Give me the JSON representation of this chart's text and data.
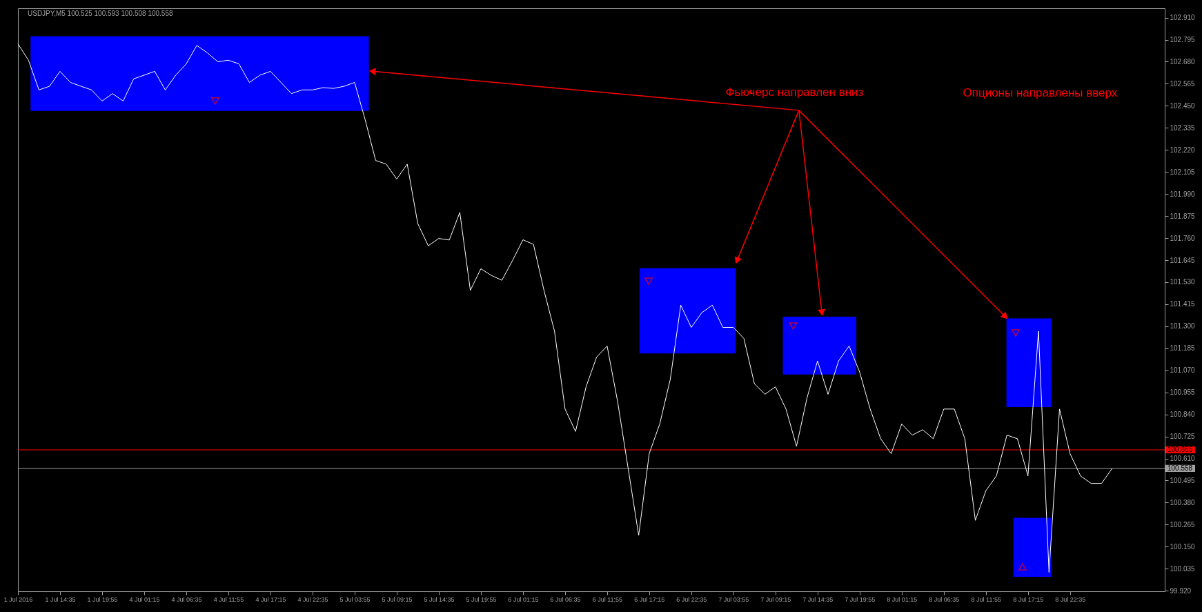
{
  "chart_data": {
    "type": "line",
    "categories": [
      "1 Jul 2016",
      null,
      null,
      null,
      "1 Jul 14:35",
      null,
      null,
      null,
      "1 Jul 19:55",
      null,
      null,
      null,
      "4 Jul 01:15",
      null,
      null,
      null,
      "4 Jul 06:35",
      null,
      null,
      null,
      "4 Jul 11:55",
      null,
      null,
      null,
      "4 Jul 17:15",
      null,
      null,
      null,
      "4 Jul 22:35",
      null,
      null,
      null,
      "5 Jul 03:55",
      null,
      null,
      null,
      "5 Jul 09:15",
      null,
      null,
      null,
      "5 Jul 14:35",
      null,
      null,
      null,
      "5 Jul 19:55",
      null,
      null,
      null,
      "6 Jul 01:15",
      null,
      null,
      null,
      "6 Jul 06:35",
      null,
      null,
      null,
      "6 Jul 11:55",
      null,
      null,
      null,
      "6 Jul 17:15",
      null,
      null,
      null,
      "6 Jul 22:35",
      null,
      null,
      null,
      "7 Jul 03:55",
      null,
      null,
      null,
      "7 Jul 09:15",
      null,
      null,
      null,
      "7 Jul 14:35",
      null,
      null,
      null,
      "7 Jul 19:55",
      null,
      null,
      null,
      "8 Jul 01:15",
      null,
      null,
      null,
      "8 Jul 06:35",
      null,
      null,
      null,
      "8 Jul 11:55",
      null,
      null,
      null,
      "8 Jul 17:15",
      null,
      null,
      null,
      "8 Jul 22:35",
      null,
      null,
      null,
      null,
      null,
      null,
      null,
      null,
      null
    ],
    "series": [
      {
        "color": "#ffffff",
        "values": [
          102.773,
          102.688,
          102.533,
          102.552,
          102.63,
          102.572,
          102.552,
          102.533,
          102.475,
          102.514,
          102.475,
          102.591,
          102.61,
          102.63,
          102.533,
          102.61,
          102.669,
          102.765,
          102.727,
          102.68,
          102.688,
          102.669,
          102.572,
          102.61,
          102.63,
          102.572,
          102.514,
          102.533,
          102.533,
          102.545,
          102.541,
          102.552,
          102.572,
          102.378,
          102.165,
          102.146,
          102.068,
          102.146,
          101.836,
          101.72,
          101.758,
          101.75,
          101.894,
          101.487,
          101.6,
          101.565,
          101.54,
          101.642,
          101.751,
          101.727,
          101.487,
          101.274,
          100.868,
          100.751,
          100.984,
          101.139,
          101.197,
          100.906,
          100.558,
          100.209,
          100.635,
          100.79,
          101.022,
          101.41,
          101.294,
          101.371,
          101.41,
          101.294,
          101.294,
          101.236,
          101.0,
          100.945,
          100.984,
          100.868,
          100.674,
          100.926,
          101.119,
          100.945,
          101.119,
          101.197,
          101.061,
          100.868,
          100.713,
          100.635,
          100.79,
          100.732,
          100.76,
          100.713,
          100.868,
          100.868,
          100.713,
          100.287,
          100.442,
          100.519,
          100.732,
          100.713,
          100.519,
          101.274,
          100.016,
          100.868,
          100.635,
          100.519,
          100.48,
          100.48,
          100.558,
          null,
          null,
          null,
          null,
          null
        ]
      }
    ],
    "ylim": [
      99.917,
      102.959
    ],
    "yticks": [
      {
        "value": 99.92,
        "label": "99.920"
      },
      {
        "value": 100.035,
        "label": "100.035"
      },
      {
        "value": 100.15,
        "label": "100.150"
      },
      {
        "value": 100.265,
        "label": "100.265"
      },
      {
        "value": 100.38,
        "label": "100.380"
      },
      {
        "value": 100.495,
        "label": "100.495"
      },
      {
        "value": 100.61,
        "label": "100.610"
      },
      {
        "value": 100.725,
        "label": "100.725"
      },
      {
        "value": 100.84,
        "label": "100.840"
      },
      {
        "value": 100.955,
        "label": "100.955"
      },
      {
        "value": 101.07,
        "label": "101.070"
      },
      {
        "value": 101.185,
        "label": "101.185"
      },
      {
        "value": 101.3,
        "label": "101.300"
      },
      {
        "value": 101.415,
        "label": "101.415"
      },
      {
        "value": 101.53,
        "label": "101.530"
      },
      {
        "value": 101.645,
        "label": "101.645"
      },
      {
        "value": 101.76,
        "label": "101.760"
      },
      {
        "value": 101.875,
        "label": "101.875"
      },
      {
        "value": 101.99,
        "label": "101.990"
      },
      {
        "value": 102.105,
        "label": "102.105"
      },
      {
        "value": 102.22,
        "label": "102.220"
      },
      {
        "value": 102.335,
        "label": "102.335"
      },
      {
        "value": 102.45,
        "label": "102.450"
      },
      {
        "value": 102.565,
        "label": "102.565"
      },
      {
        "value": 102.68,
        "label": "102.680"
      },
      {
        "value": 102.795,
        "label": "102.795"
      },
      {
        "value": 102.91,
        "label": "102.910"
      }
    ],
    "ref_lines": [
      {
        "axis": "y",
        "value": 100.655,
        "label": "100.655",
        "color": "#ff0000"
      },
      {
        "axis": "y",
        "value": 100.558,
        "label": "100.558",
        "color": "#a0a0a0"
      }
    ],
    "annotations": [
      "USDJPY,M5  100.525 100.593 100.508 100.558",
      "Фьючерс направлен вниз",
      "Опционы направлены вверх"
    ],
    "grid": false,
    "marker": "none",
    "line_style": "solid"
  }
}
